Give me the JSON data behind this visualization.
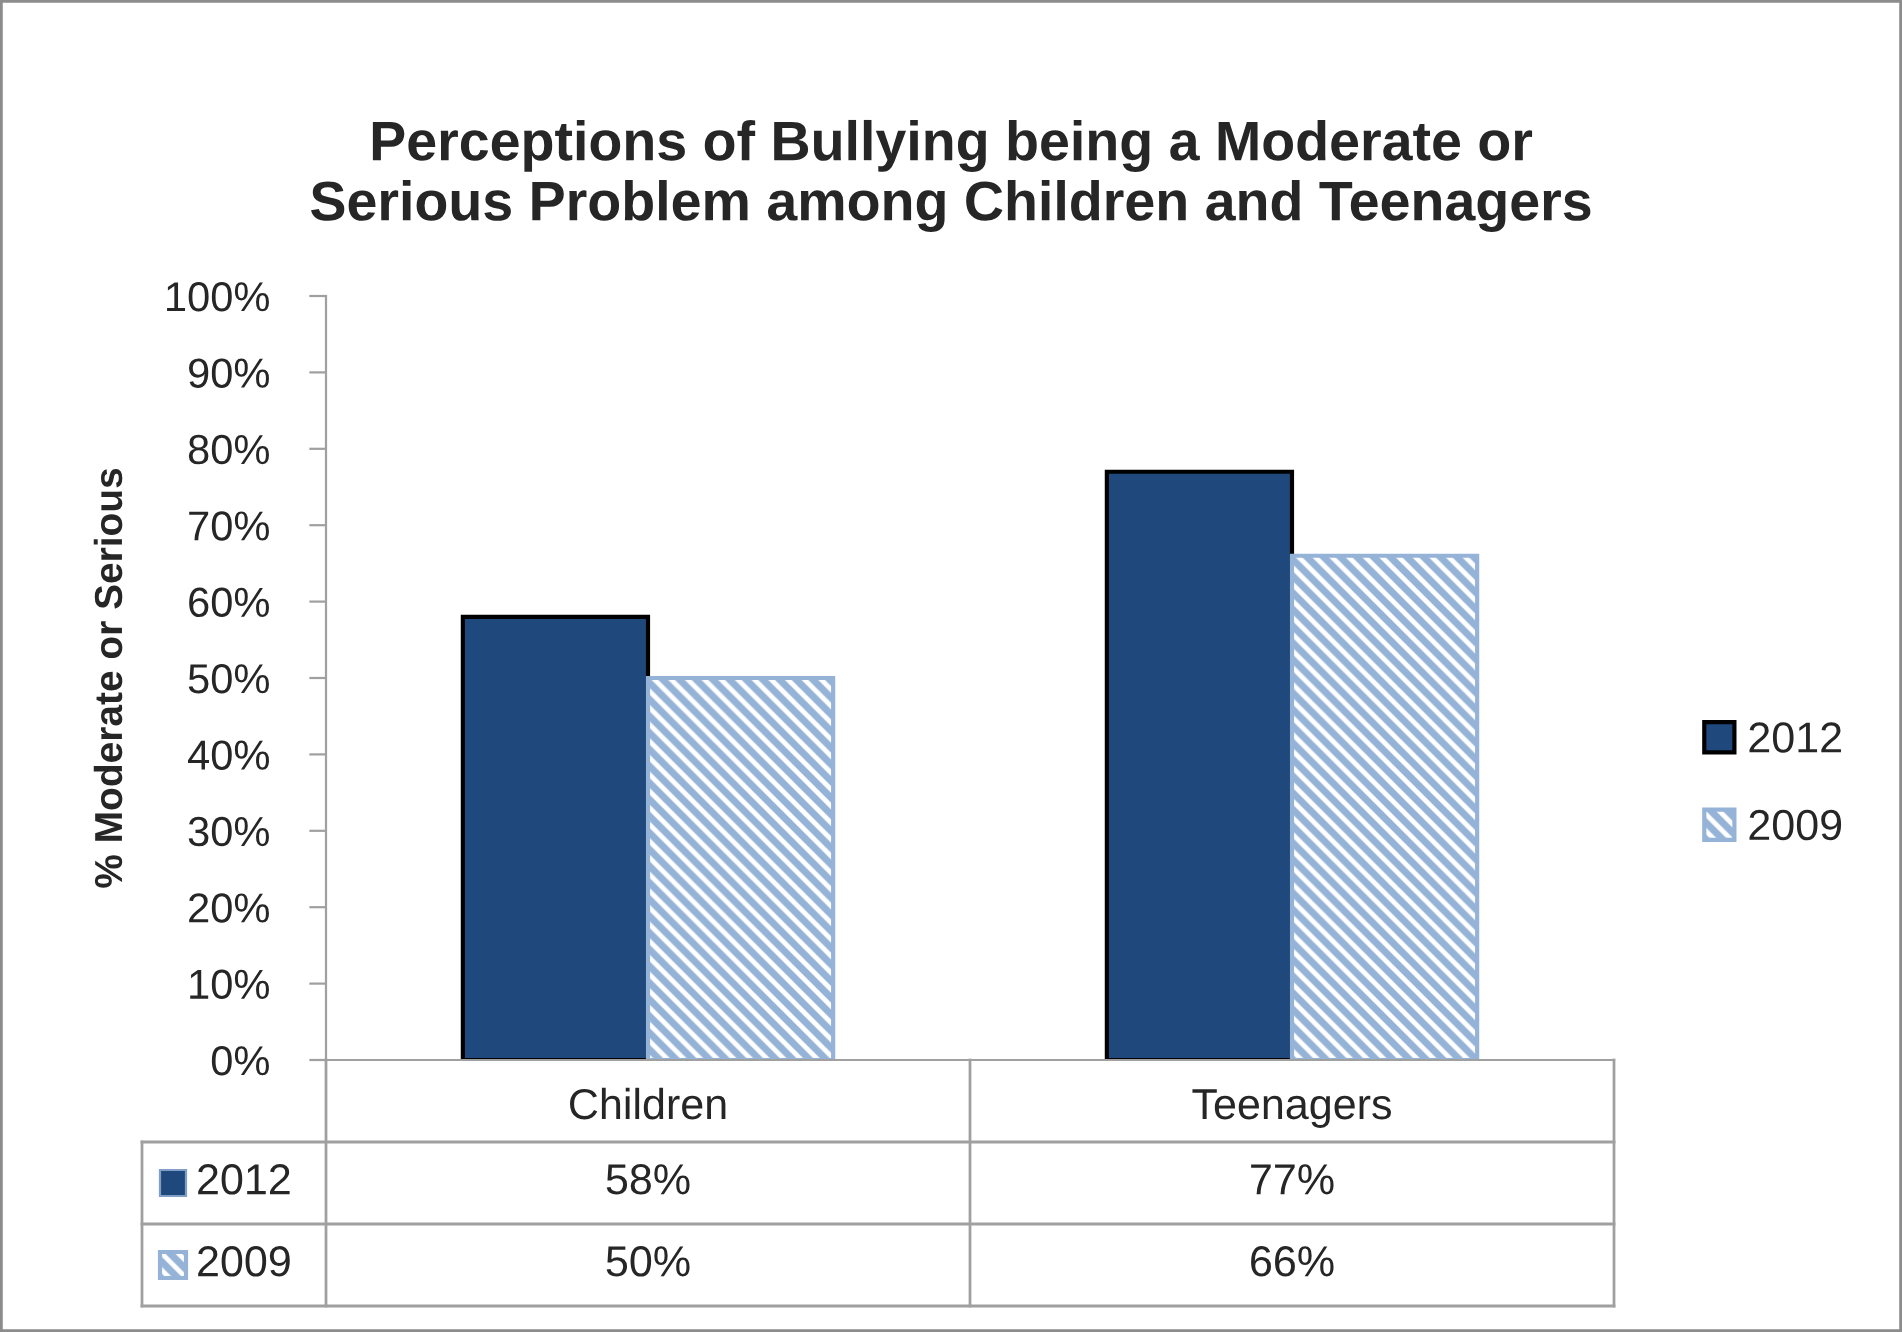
{
  "chart_data": {
    "type": "bar",
    "title": "Perceptions of Bullying being a Moderate or Serious Problem among Children and Teenagers",
    "ylabel": "% Moderate or Serious",
    "categories": [
      "Children",
      "Teenagers"
    ],
    "series": [
      {
        "name": "2012",
        "color": "#1f497d",
        "values": [
          58,
          77
        ],
        "value_labels": [
          "58%",
          "77%"
        ]
      },
      {
        "name": "2009",
        "color": "#95b3d7",
        "values": [
          50,
          66
        ],
        "value_labels": [
          "50%",
          "66%"
        ]
      }
    ],
    "ylim": [
      0,
      100
    ],
    "yticks": [
      {
        "value": 0,
        "label": "0%"
      },
      {
        "value": 10,
        "label": "10%"
      },
      {
        "value": 20,
        "label": "20%"
      },
      {
        "value": 30,
        "label": "30%"
      },
      {
        "value": 40,
        "label": "40%"
      },
      {
        "value": 50,
        "label": "50%"
      },
      {
        "value": 60,
        "label": "60%"
      },
      {
        "value": 70,
        "label": "70%"
      },
      {
        "value": 80,
        "label": "80%"
      },
      {
        "value": 90,
        "label": "90%"
      },
      {
        "value": 100,
        "label": "100%"
      }
    ],
    "legend": "right"
  }
}
